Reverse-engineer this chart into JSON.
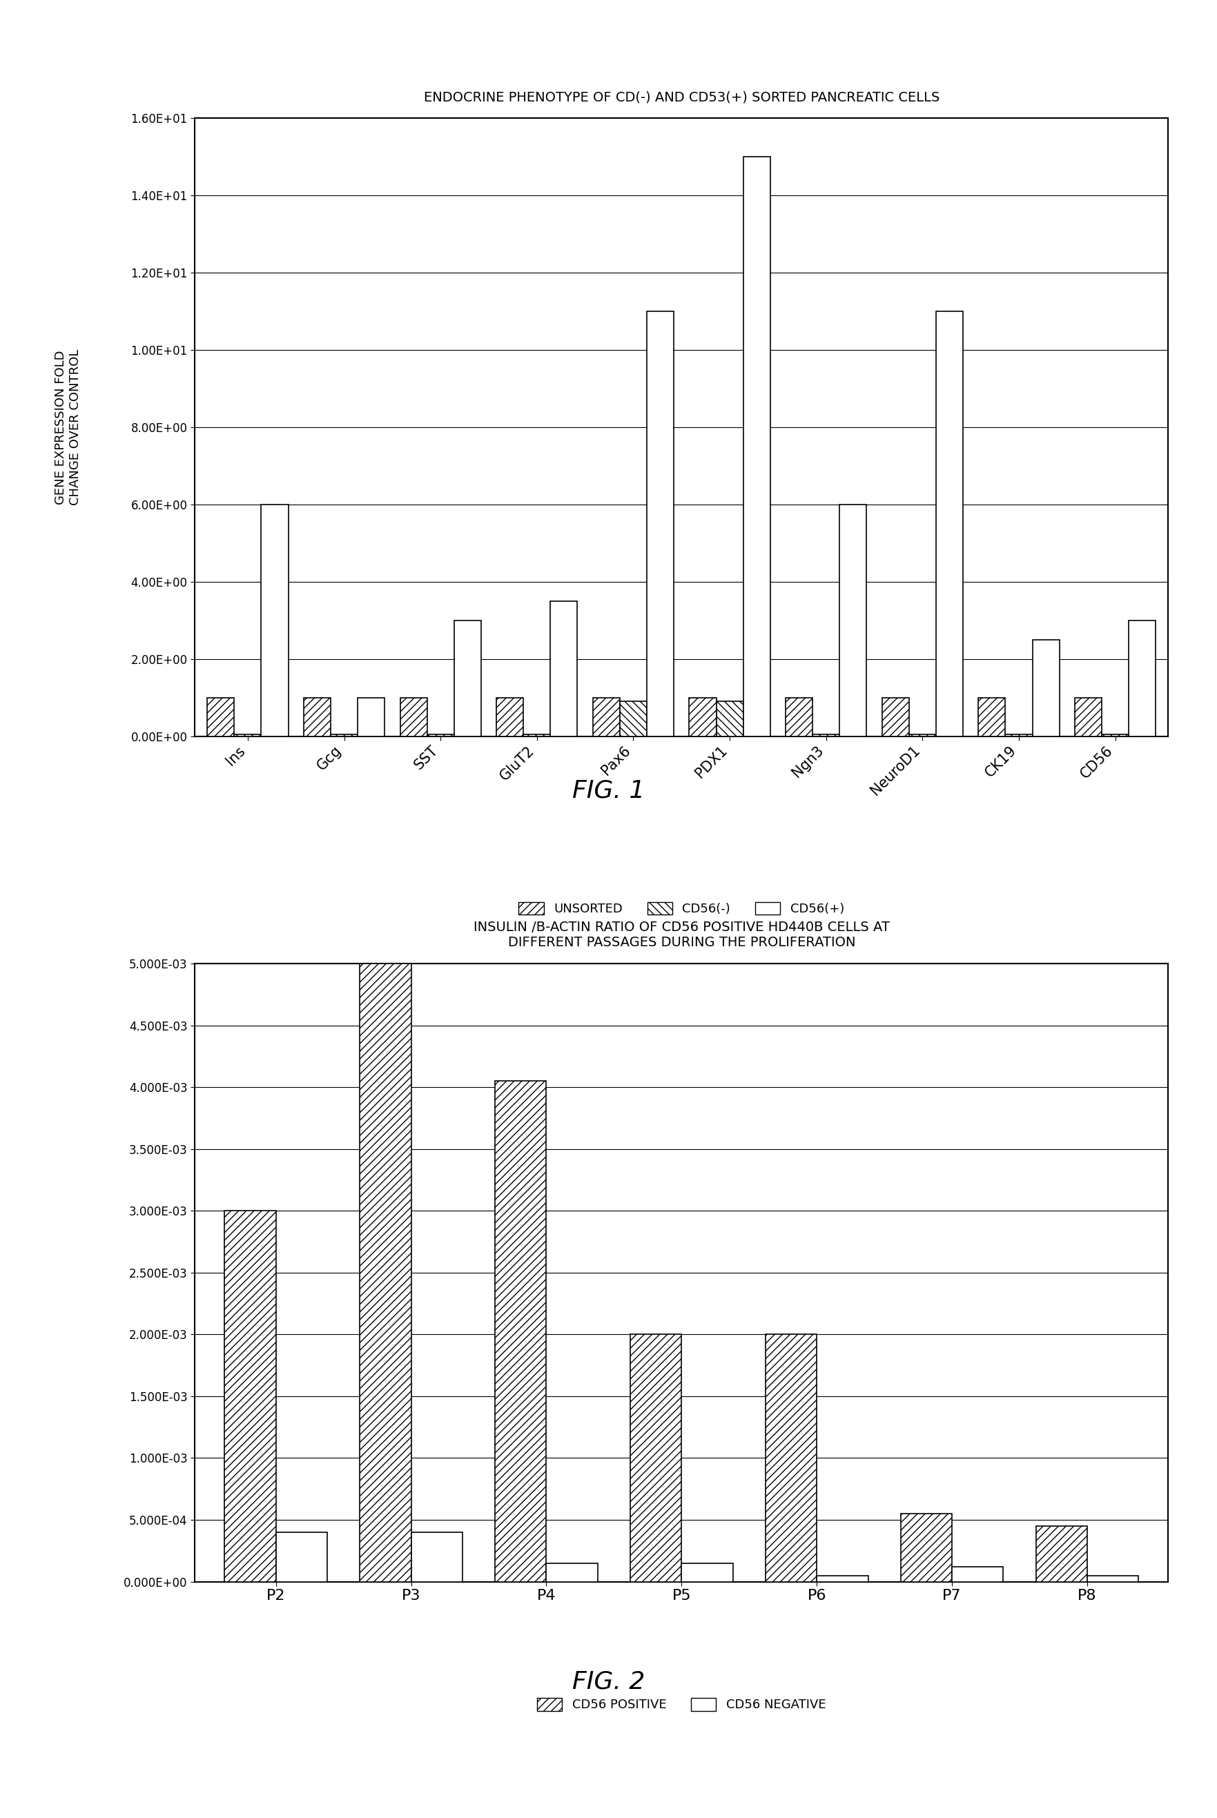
{
  "fig1": {
    "title": "ENDOCRINE PHENOTYPE OF CD(-) AND CD53(+) SORTED PANCREATIC CELLS",
    "ylabel_line1": "GENE EXPRESSION FOLD",
    "ylabel_line2": "CHANGE OVER CONTROL",
    "categories": [
      "Ins",
      "Gcg",
      "SST",
      "GluT2",
      "Pax6",
      "PDX1",
      "Ngn3",
      "NeuroD1",
      "CK19",
      "CD56"
    ],
    "unsorted": [
      1.0,
      1.0,
      1.0,
      1.0,
      1.0,
      1.0,
      1.0,
      1.0,
      1.0,
      1.0
    ],
    "cd56neg": [
      0.05,
      0.05,
      0.05,
      0.05,
      0.9,
      0.9,
      0.05,
      0.05,
      0.05,
      0.05
    ],
    "cd56pos": [
      6.0,
      1.0,
      3.0,
      3.5,
      11.0,
      15.0,
      6.0,
      11.0,
      2.5,
      3.0
    ],
    "ylim": [
      0,
      16
    ],
    "yticks": [
      0.0,
      2.0,
      4.0,
      6.0,
      8.0,
      10.0,
      12.0,
      14.0,
      16.0
    ],
    "ytick_labels": [
      "0.00E+00",
      "2.00E+00",
      "4.00E+00",
      "6.00E+00",
      "8.00E+00",
      "1.00E+01",
      "1.20E+01",
      "1.40E+01",
      "1.60E+01"
    ],
    "legend_labels": [
      "UNSORTED",
      "CD56(-)",
      "CD56(+)"
    ]
  },
  "fig2": {
    "title_line1": "INSULIN /B-ACTIN RATIO OF CD56 POSITIVE HD440B CELLS AT",
    "title_line2": "DIFFERENT PASSAGES DURING THE PROLIFERATION",
    "categories": [
      "P2",
      "P3",
      "P4",
      "P5",
      "P6",
      "P7",
      "P8"
    ],
    "cd56pos": [
      0.003,
      0.005,
      0.00405,
      0.002,
      0.002,
      0.00055,
      0.00045
    ],
    "cd56neg": [
      0.0004,
      0.0004,
      0.00015,
      0.00015,
      5e-05,
      0.00012,
      5e-05
    ],
    "ylim": [
      0,
      0.005
    ],
    "yticks": [
      0.0,
      0.0005,
      0.001,
      0.0015,
      0.002,
      0.0025,
      0.003,
      0.0035,
      0.004,
      0.0045,
      0.005
    ],
    "ytick_labels": [
      "0.000E+00",
      "5.000E-04",
      "1.000E-03",
      "1.500E-03",
      "2.000E-03",
      "2.500E-03",
      "3.000E-03",
      "3.500E-03",
      "4.000E-03",
      "4.500E-03",
      "5.000E-03"
    ],
    "legend_labels": [
      "CD56 POSITIVE",
      "CD56 NEGATIVE"
    ]
  },
  "background_color": "#ffffff"
}
